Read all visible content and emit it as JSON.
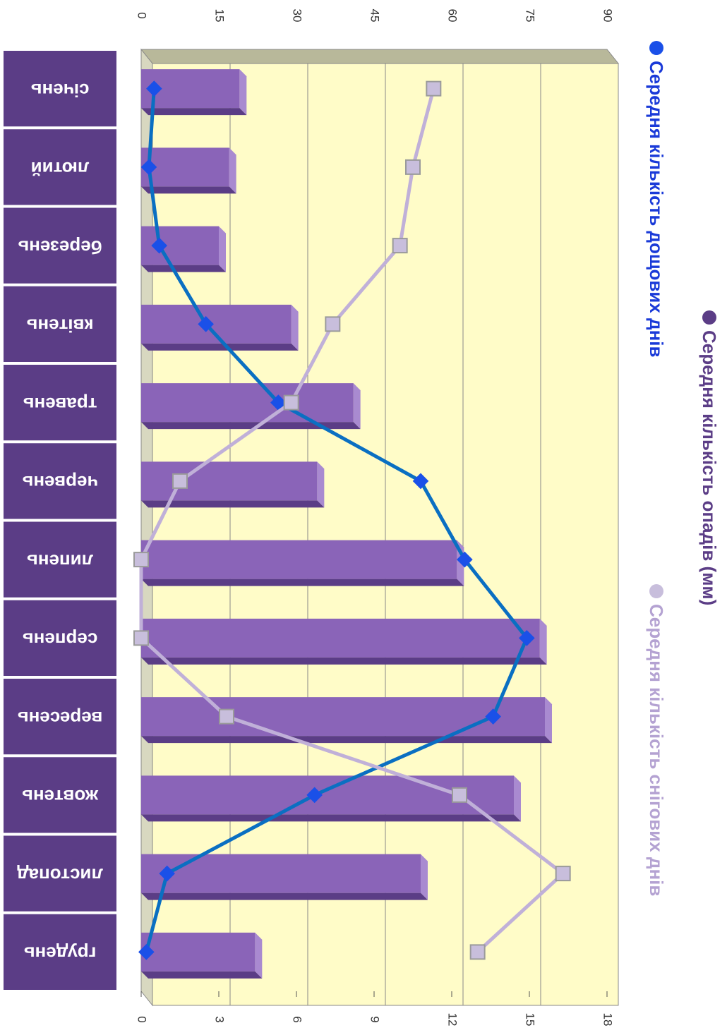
{
  "chart_data": {
    "type": "bar_line",
    "title": "Середня кількість опадів (мм)",
    "categories": [
      "січень",
      "лютий",
      "березень",
      "квітень",
      "травень",
      "червень",
      "липень",
      "серпень",
      "вересень",
      "жовтень",
      "листопад",
      "грудень"
    ],
    "series": [
      {
        "name": "Середня кількість опадів (мм)",
        "type": "bar",
        "color": "#8a64b8",
        "axis": "y",
        "values": [
          19,
          17,
          15,
          29,
          41,
          34,
          61,
          77,
          78,
          72,
          54,
          22
        ]
      },
      {
        "name": "Середня кількість дощових днів",
        "type": "line",
        "color": "#0a6fc2",
        "marker_color": "#1a50e8",
        "axis": "y2",
        "values": [
          0.5,
          0.3,
          0.7,
          2.5,
          5.3,
          10.8,
          12.5,
          14.9,
          13.6,
          6.7,
          1,
          0.2
        ]
      },
      {
        "name": "Середня кількість снігових днів",
        "type": "line",
        "color": "#c0b0d8",
        "marker_color": "#c8bedc",
        "axis": "y2",
        "values": [
          11.3,
          10.5,
          10,
          7.4,
          5.8,
          1.5,
          0,
          0,
          3.3,
          12.3,
          16.3,
          13
        ]
      }
    ],
    "ylim": [
      0,
      90
    ],
    "yticks": [
      0,
      15,
      30,
      45,
      60,
      75,
      90
    ],
    "y2lim": [
      0,
      18
    ],
    "y2ticks": [
      0,
      3,
      6,
      9,
      12,
      15,
      18
    ],
    "grid": true
  }
}
